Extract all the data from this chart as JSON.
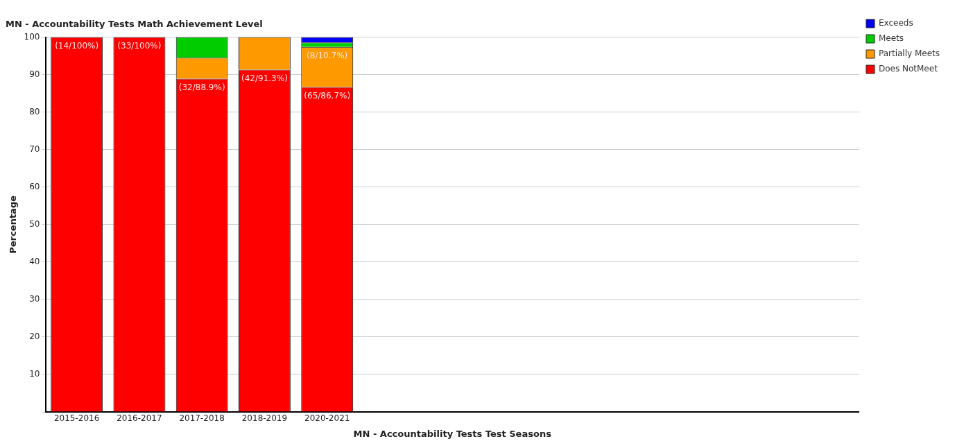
{
  "chart_data": {
    "type": "bar",
    "stacked": true,
    "title": "MN - Accountability Tests Math Achievement Level",
    "xlabel": "MN - Accountability Tests Test Seasons",
    "ylabel": "Percentage",
    "categories": [
      "2015-2016",
      "2016-2017",
      "2017-2018",
      "2018-2019",
      "2020-2021",
      null,
      null,
      null,
      null,
      null,
      null,
      null,
      null
    ],
    "series": [
      {
        "name": "Does NotMeet",
        "color": "#ff0000",
        "values": [
          100,
          100,
          88.9,
          91.3,
          86.7,
          null,
          null,
          null,
          null,
          null,
          null,
          null,
          null
        ],
        "value_labels": [
          "(14/100%)",
          "(33/100%)",
          "(32/88.9%)",
          "(42/91.3%)",
          "(65/86.7%)",
          null,
          null,
          null,
          null,
          null,
          null,
          null,
          null
        ]
      },
      {
        "name": "Partially Meets",
        "color": "#ff9900",
        "values": [
          0,
          0,
          5.6,
          8.7,
          10.7,
          null,
          null,
          null,
          null,
          null,
          null,
          null,
          null
        ],
        "value_labels": [
          null,
          null,
          null,
          null,
          "(8/10.7%)",
          null,
          null,
          null,
          null,
          null,
          null,
          null,
          null
        ]
      },
      {
        "name": "Meets",
        "color": "#00cc00",
        "values": [
          0,
          0,
          5.5,
          0,
          1.2,
          null,
          null,
          null,
          null,
          null,
          null,
          null,
          null
        ]
      },
      {
        "name": "Exceeds",
        "color": "#0000ff",
        "values": [
          0,
          0,
          0,
          0,
          1.4,
          null,
          null,
          null,
          null,
          null,
          null,
          null,
          null
        ]
      }
    ],
    "ylim": [
      0,
      100
    ],
    "yticks": [
      {
        "value": 0,
        "label": null
      },
      10,
      20,
      30,
      40,
      50,
      60,
      70,
      80,
      90,
      100
    ],
    "grid": "y",
    "legend": "top right"
  }
}
